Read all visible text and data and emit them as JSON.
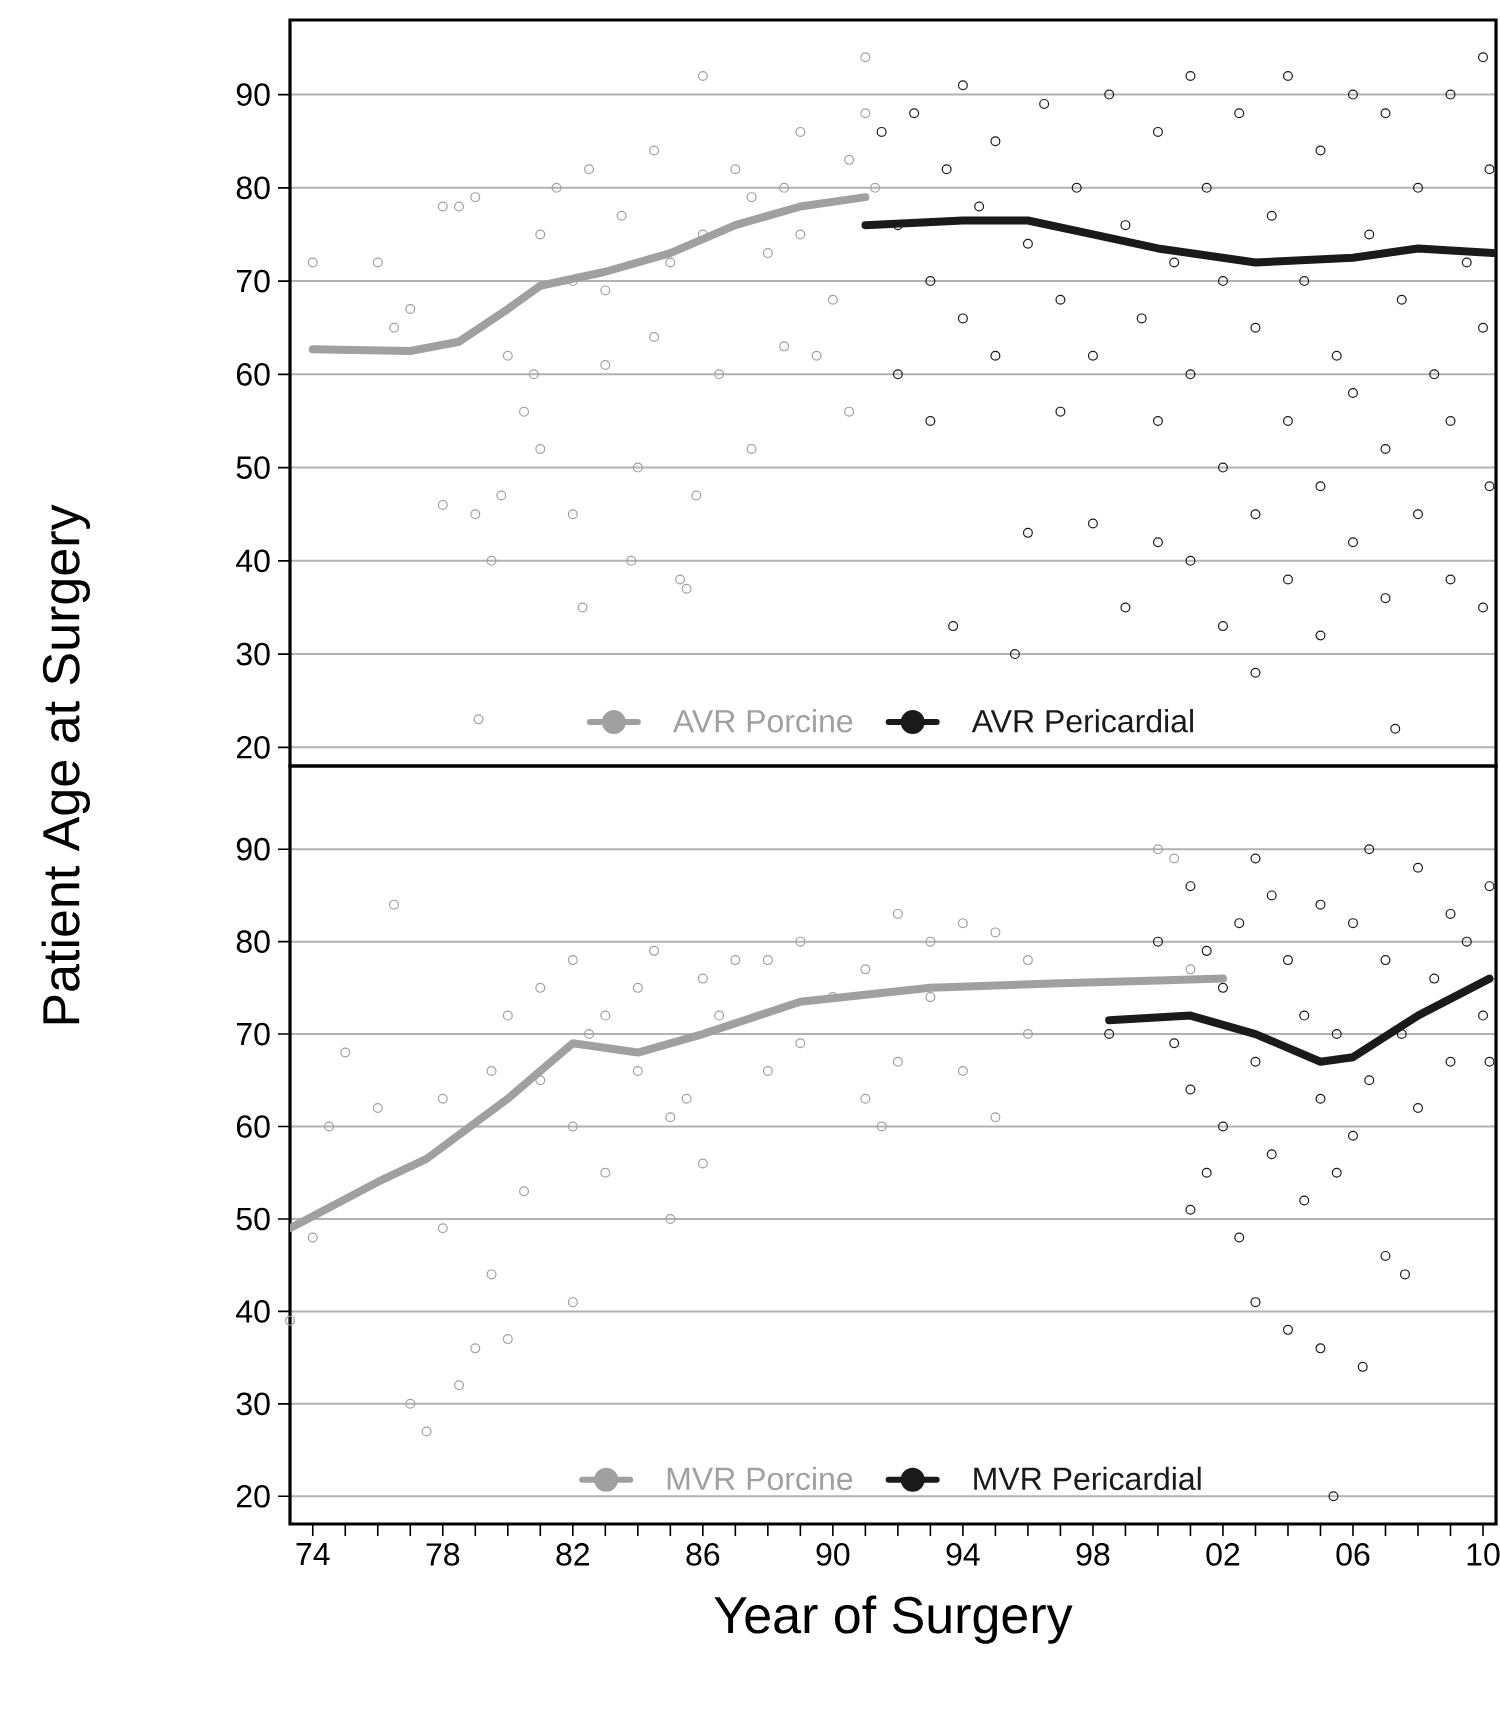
{
  "chart_data": [
    {
      "type": "scatter",
      "ylabel": "Patient Age at Surgery",
      "xlim": [
        1973.3,
        2010.4
      ],
      "ylim": [
        18,
        98
      ],
      "yticks": [
        20,
        30,
        40,
        50,
        60,
        70,
        80,
        90
      ],
      "tick_labels": "y",
      "grid": "y",
      "legend": "bottom",
      "series": [
        {
          "marker": "circle",
          "color": "#a0a0a0",
          "x": [
            1974,
            1976,
            1976.5,
            1977,
            1978,
            1978.5,
            1979,
            1978,
            1979,
            1979.5,
            1979.8,
            1980,
            1980.5,
            1980.8,
            1981,
            1981,
            1981.5,
            1982,
            1982,
            1982.3,
            1982.5,
            1983,
            1983.5,
            1983,
            1983.8,
            1984,
            1984.5,
            1984.5,
            1985,
            1985.3,
            1985.5,
            1985.8,
            1986,
            1986,
            1986.5,
            1987,
            1987.5,
            1987.5,
            1988,
            1988.5,
            1988.5,
            1989,
            1989,
            1989.5,
            1990,
            1990.5,
            1990.5,
            1991,
            1991,
            1991.3,
            1979.1
          ],
          "values": [
            72,
            72,
            65,
            67,
            78,
            78,
            79,
            46,
            45,
            40,
            47,
            62,
            56,
            60,
            75,
            52,
            80,
            70,
            45,
            35,
            82,
            69,
            77,
            61,
            40,
            50,
            84,
            64,
            72,
            38,
            37,
            47,
            92,
            75,
            60,
            82,
            79,
            52,
            73,
            80,
            63,
            86,
            75,
            62,
            68,
            83,
            56,
            94,
            88,
            80,
            23
          ]
        },
        {
          "marker": "circle",
          "color": "#1a1a1a",
          "x": [
            1991.5,
            1992,
            1992,
            1992.5,
            1993,
            1993,
            1993.5,
            1994,
            1994,
            1994.5,
            1993.7,
            1995,
            1995,
            1995.6,
            1996,
            1996,
            1996.5,
            1997,
            1997,
            1997.5,
            1998,
            1998,
            1998.5,
            1999,
            1999,
            1999.5,
            2000,
            2000,
            2000,
            2000.5,
            2001,
            2001,
            2001,
            2001.5,
            2002,
            2002,
            2002,
            2002.5,
            2003,
            2003,
            2003,
            2003.5,
            2004,
            2004,
            2004,
            2004.5,
            2005,
            2005,
            2005,
            2005.5,
            2006,
            2006,
            2006,
            2006.5,
            2007,
            2007,
            2007,
            2007.3,
            2007.5,
            2008,
            2008,
            2008.5,
            2009,
            2009,
            2009,
            2009.5,
            2010,
            2010,
            2010,
            2010.2,
            2010.2
          ],
          "values": [
            86,
            76,
            60,
            88,
            70,
            55,
            82,
            91,
            66,
            78,
            33,
            85,
            62,
            30,
            74,
            43,
            89,
            68,
            56,
            80,
            44,
            62,
            90,
            76,
            35,
            66,
            86,
            55,
            42,
            72,
            92,
            60,
            40,
            80,
            50,
            70,
            33,
            88,
            65,
            45,
            28,
            77,
            92,
            55,
            38,
            70,
            84,
            48,
            32,
            62,
            90,
            58,
            42,
            75,
            88,
            52,
            36,
            22,
            68,
            80,
            45,
            60,
            90,
            55,
            38,
            72,
            94,
            65,
            35,
            82,
            48
          ]
        },
        {
          "type": "line",
          "name": "AVR Porcine",
          "color": "#a0a0a0",
          "x": [
            1974,
            1977,
            1978.5,
            1980,
            1981,
            1983,
            1985,
            1987,
            1989,
            1991
          ],
          "values": [
            62.7,
            62.5,
            63.5,
            67,
            69.5,
            71,
            73,
            76,
            78,
            79
          ]
        },
        {
          "type": "line",
          "name": "AVR Pericardial",
          "color": "#1a1a1a",
          "x": [
            1991,
            1994,
            1996,
            1998,
            2000,
            2003,
            2006,
            2008,
            2010.3
          ],
          "values": [
            76,
            76.5,
            76.5,
            75,
            73.5,
            72,
            72.5,
            73.5,
            73
          ]
        }
      ]
    },
    {
      "type": "scatter",
      "xlabel": "Year of Surgery",
      "xlim": [
        1973.3,
        2010.4
      ],
      "ylim": [
        17,
        99
      ],
      "xticks": [
        {
          "value": 1974,
          "label": "74"
        },
        {
          "value": 1975,
          "label": null
        },
        {
          "value": 1976,
          "label": null
        },
        {
          "value": 1977,
          "label": null
        },
        {
          "value": 1978,
          "label": "78"
        },
        {
          "value": 1979,
          "label": null
        },
        {
          "value": 1980,
          "label": null
        },
        {
          "value": 1981,
          "label": null
        },
        {
          "value": 1982,
          "label": "82"
        },
        {
          "value": 1983,
          "label": null
        },
        {
          "value": 1984,
          "label": null
        },
        {
          "value": 1985,
          "label": null
        },
        {
          "value": 1986,
          "label": "86"
        },
        {
          "value": 1987,
          "label": null
        },
        {
          "value": 1988,
          "label": null
        },
        {
          "value": 1989,
          "label": null
        },
        {
          "value": 1990,
          "label": "90"
        },
        {
          "value": 1991,
          "label": null
        },
        {
          "value": 1992,
          "label": null
        },
        {
          "value": 1993,
          "label": null
        },
        {
          "value": 1994,
          "label": "94"
        },
        {
          "value": 1995,
          "label": null
        },
        {
          "value": 1996,
          "label": null
        },
        {
          "value": 1997,
          "label": null
        },
        {
          "value": 1998,
          "label": "98"
        },
        {
          "value": 1999,
          "label": null
        },
        {
          "value": 2000,
          "label": null
        },
        {
          "value": 2001,
          "label": null
        },
        {
          "value": 2002,
          "label": "02"
        },
        {
          "value": 2003,
          "label": null
        },
        {
          "value": 2004,
          "label": null
        },
        {
          "value": 2005,
          "label": null
        },
        {
          "value": 2006,
          "label": "06"
        },
        {
          "value": 2007,
          "label": null
        },
        {
          "value": 2008,
          "label": null
        },
        {
          "value": 2009,
          "label": null
        },
        {
          "value": 2010,
          "label": "10"
        }
      ],
      "yticks": [
        20,
        30,
        40,
        50,
        60,
        70,
        80,
        90
      ],
      "grid": "y",
      "legend": "bottom",
      "series": [
        {
          "marker": "circle",
          "color": "#a0a0a0",
          "x": [
            1973.3,
            1974,
            1974.5,
            1975,
            1976,
            1976.5,
            1977,
            1977.5,
            1978,
            1978,
            1978.5,
            1979,
            1979.5,
            1979.5,
            1980,
            1980,
            1980.5,
            1981,
            1981,
            1982,
            1982,
            1982,
            1982.5,
            1983,
            1983,
            1984,
            1984,
            1984.5,
            1985,
            1985,
            1985.5,
            1986,
            1986,
            1986.5,
            1987,
            1988,
            1988,
            1989,
            1989,
            1990,
            1991,
            1991,
            1992,
            1992,
            1993,
            1993,
            1994,
            1994,
            1995,
            1995,
            1996,
            1996,
            1991.5,
            2000,
            2000.5,
            2001
          ],
          "values": [
            39,
            48,
            60,
            68,
            62,
            84,
            30,
            27,
            49,
            63,
            32,
            36,
            44,
            66,
            72,
            37,
            53,
            75,
            65,
            78,
            60,
            41,
            70,
            55,
            72,
            75,
            66,
            79,
            61,
            50,
            63,
            76,
            56,
            72,
            78,
            78,
            66,
            80,
            69,
            74,
            77,
            63,
            83,
            67,
            80,
            74,
            82,
            66,
            81,
            61,
            78,
            70,
            60,
            90,
            89,
            77
          ]
        },
        {
          "marker": "circle",
          "color": "#1a1a1a",
          "x": [
            1998.5,
            2000,
            2000.5,
            2001,
            2001,
            2001,
            2001.5,
            2001.5,
            2002,
            2002,
            2002.5,
            2002.5,
            2003,
            2003,
            2003,
            2003.5,
            2003.5,
            2004,
            2004,
            2004.5,
            2004.5,
            2005,
            2005,
            2005,
            2005.5,
            2005.5,
            2006,
            2006,
            2005.4,
            2006.5,
            2006.5,
            2007,
            2007,
            2006.3,
            2007.6,
            2007.5,
            2008,
            2008,
            2008.5,
            2009,
            2009,
            2009.5,
            2010,
            2010.2,
            2010.2
          ],
          "values": [
            70,
            80,
            69,
            86,
            64,
            51,
            79,
            55,
            75,
            60,
            82,
            48,
            89,
            67,
            41,
            85,
            57,
            78,
            38,
            72,
            52,
            84,
            63,
            36,
            70,
            55,
            82,
            59,
            20,
            90,
            65,
            78,
            46,
            34,
            44,
            70,
            88,
            62,
            76,
            83,
            67,
            80,
            72,
            86,
            67
          ]
        },
        {
          "type": "line",
          "name": "MVR Porcine",
          "color": "#a0a0a0",
          "x": [
            1973.3,
            1976,
            1977.5,
            1980,
            1982,
            1984,
            1986,
            1989,
            1993,
            1997,
            2000,
            2002
          ],
          "values": [
            49,
            54,
            56.5,
            63,
            69,
            68,
            70,
            73.5,
            75,
            75.5,
            75.8,
            76
          ]
        },
        {
          "type": "line",
          "name": "MVR Pericardial",
          "color": "#1a1a1a",
          "x": [
            1998.5,
            2001,
            2003,
            2005,
            2006,
            2008,
            2010.2
          ],
          "values": [
            71.5,
            72,
            70,
            67,
            67.5,
            72,
            76
          ]
        }
      ]
    }
  ]
}
